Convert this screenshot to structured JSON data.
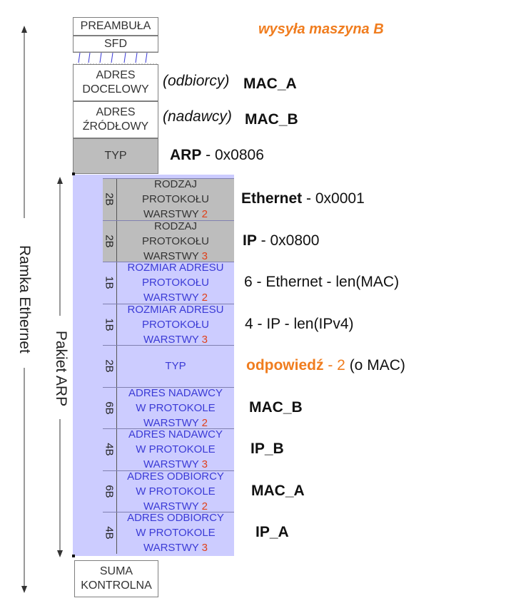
{
  "header": {
    "sender": "wysyła maszyna B",
    "preamble": "PREAMBUŁA",
    "sfd": "SFD"
  },
  "ethernet": {
    "dest_line1": "ADRES",
    "dest_line2": "DOCELOWY",
    "dest_role": "(odbiorcy)",
    "dest_value": "MAC_A",
    "src_line1": "ADRES",
    "src_line2": "ŹRÓDŁOWY",
    "src_role": "(nadawcy)",
    "src_value": "MAC_B",
    "type_label": "TYP",
    "type_value_name": "ARP",
    "type_value_code": " - 0x0806",
    "checksum_line1": "SUMA",
    "checksum_line2": "KONTROLNA",
    "frame_label": "Ramka Ethernet"
  },
  "arp": {
    "packet_label": "Pakiet ARP",
    "fields": [
      {
        "size": "2B",
        "l1": "RODZAJ",
        "l2": "PROTOKOŁU",
        "l3": "WARSTWY ",
        "num": "2",
        "v_bold": "Ethernet",
        "v_rest": " - 0x0001"
      },
      {
        "size": "2B",
        "l1": "RODZAJ",
        "l2": "PROTOKOŁU",
        "l3": "WARSTWY ",
        "num": "3",
        "v_bold": "IP",
        "v_rest": " - 0x0800"
      },
      {
        "size": "1B",
        "l1": "ROZMIAR ADRESU",
        "l2": "PROTOKOŁU",
        "l3": "WARSTWY ",
        "num": "2",
        "v_rest": "6 - Ethernet - len(MAC)"
      },
      {
        "size": "1B",
        "l1": "ROZMIAR ADRESU",
        "l2": "PROTOKOŁU",
        "l3": "WARSTWY ",
        "num": "3",
        "v_rest": "4 - IP - len(IPv4)"
      },
      {
        "size": "2B",
        "l1": "TYP",
        "v_bold": "odpowiedź",
        "v_mid": " - ",
        "v_num": "2",
        "v_rest": " (o MAC)"
      },
      {
        "size": "6B",
        "l1": "ADRES NADAWCY",
        "l2": "W PROTOKOLE",
        "l3": "WARSTWY ",
        "num": "2",
        "v_bold": "MAC_B"
      },
      {
        "size": "4B",
        "l1": "ADRES NADAWCY",
        "l2": "W PROTOKOLE",
        "l3": "WARSTWY ",
        "num": "3",
        "v_bold": "IP_B"
      },
      {
        "size": "6B",
        "l1": "ADRES ODBIORCY",
        "l2": "W PROTOKOLE",
        "l3": "WARSTWY ",
        "num": "2",
        "v_bold": "MAC_A"
      },
      {
        "size": "4B",
        "l1": "ADRES ODBIORCY",
        "l2": "W PROTOKOLE",
        "l3": "WARSTWY ",
        "num": "3",
        "v_bold": "IP_A"
      }
    ]
  }
}
